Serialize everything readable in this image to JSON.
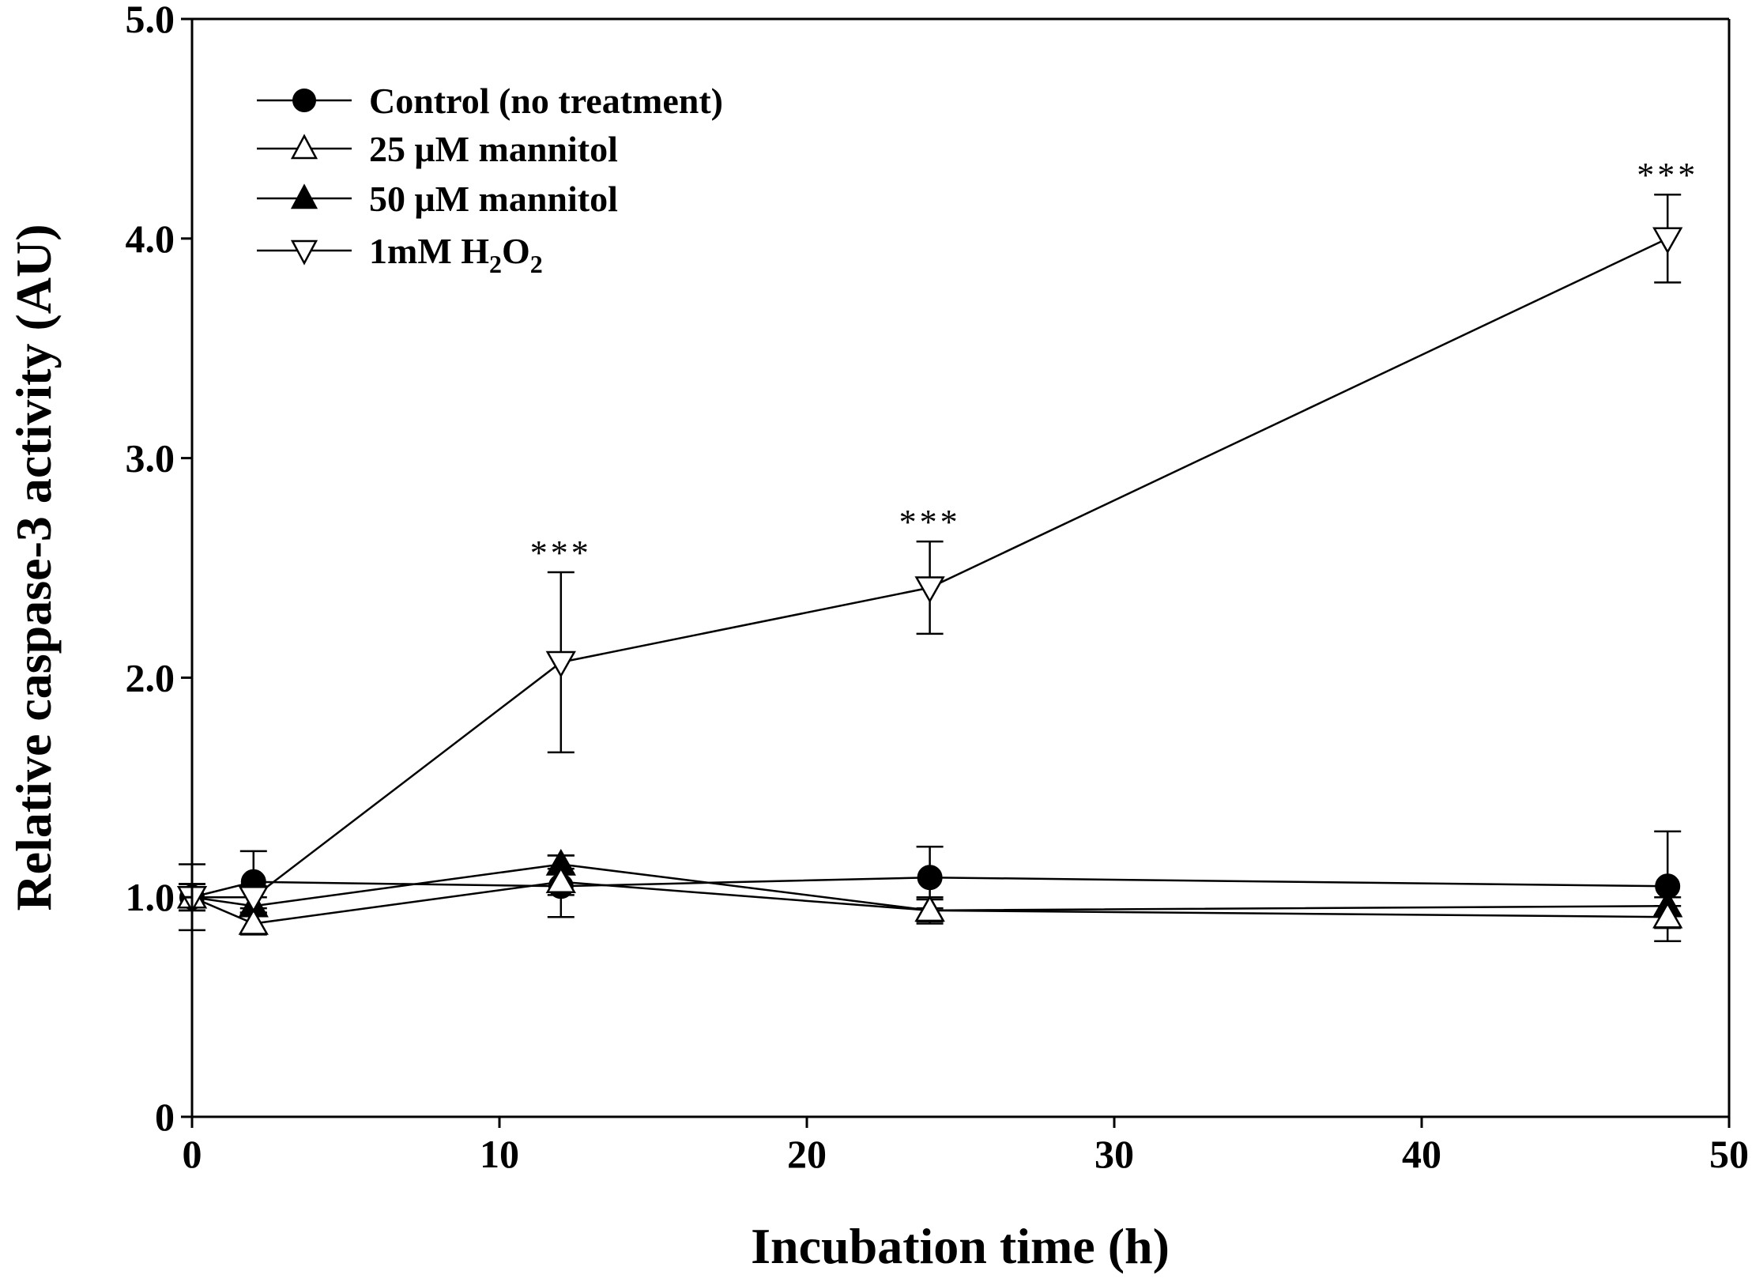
{
  "chart_data": {
    "type": "line",
    "title": "",
    "xlabel": "Incubation time (h)",
    "ylabel": "Relative caspase-3 activity (AU)",
    "xlim": [
      0,
      50
    ],
    "ylim": [
      0,
      5.0
    ],
    "xticks": [
      0,
      10,
      20,
      30,
      40,
      50
    ],
    "xtick_labels": [
      "0",
      "10",
      "20",
      "30",
      "40",
      "50"
    ],
    "yticks": [
      0,
      1.0,
      2.0,
      3.0,
      4.0,
      5.0
    ],
    "ytick_labels": [
      "0",
      "1.0",
      "2.0",
      "3.0",
      "4.0",
      "5.0"
    ],
    "grid": false,
    "legend_position": "top-left",
    "x": [
      0,
      2,
      12,
      24,
      48
    ],
    "series": [
      {
        "name": "Control (no treatment)",
        "marker": "circle-filled",
        "values": [
          1.0,
          1.07,
          1.05,
          1.09,
          1.05
        ],
        "errors": [
          0.06,
          0.14,
          0.14,
          0.14,
          0.25
        ]
      },
      {
        "name": "25 μM mannitol",
        "marker": "triangle-up-open",
        "values": [
          1.0,
          0.88,
          1.07,
          0.94,
          0.91
        ],
        "errors": [
          0.06,
          0.05,
          0.06,
          0.05,
          0.05
        ]
      },
      {
        "name": "50 μM mannitol",
        "marker": "triangle-up-filled",
        "values": [
          1.0,
          0.96,
          1.15,
          0.94,
          0.96
        ],
        "errors": [
          0.06,
          0.04,
          0.04,
          0.06,
          0.04
        ]
      },
      {
        "name": "1mM H2O2",
        "legend_label": {
          "base": "1mM H",
          "sub1": "2",
          "mid": "O",
          "sub2": "2"
        },
        "marker": "triangle-down-open",
        "values": [
          1.0,
          1.0,
          2.07,
          2.41,
          4.0
        ],
        "errors": [
          0.15,
          0.05,
          0.41,
          0.21,
          0.2
        ]
      }
    ],
    "annotations": [
      {
        "x": 12,
        "y": 2.48,
        "text": "***"
      },
      {
        "x": 24,
        "y": 2.62,
        "text": "***"
      },
      {
        "x": 48,
        "y": 4.2,
        "text": "***"
      }
    ]
  }
}
